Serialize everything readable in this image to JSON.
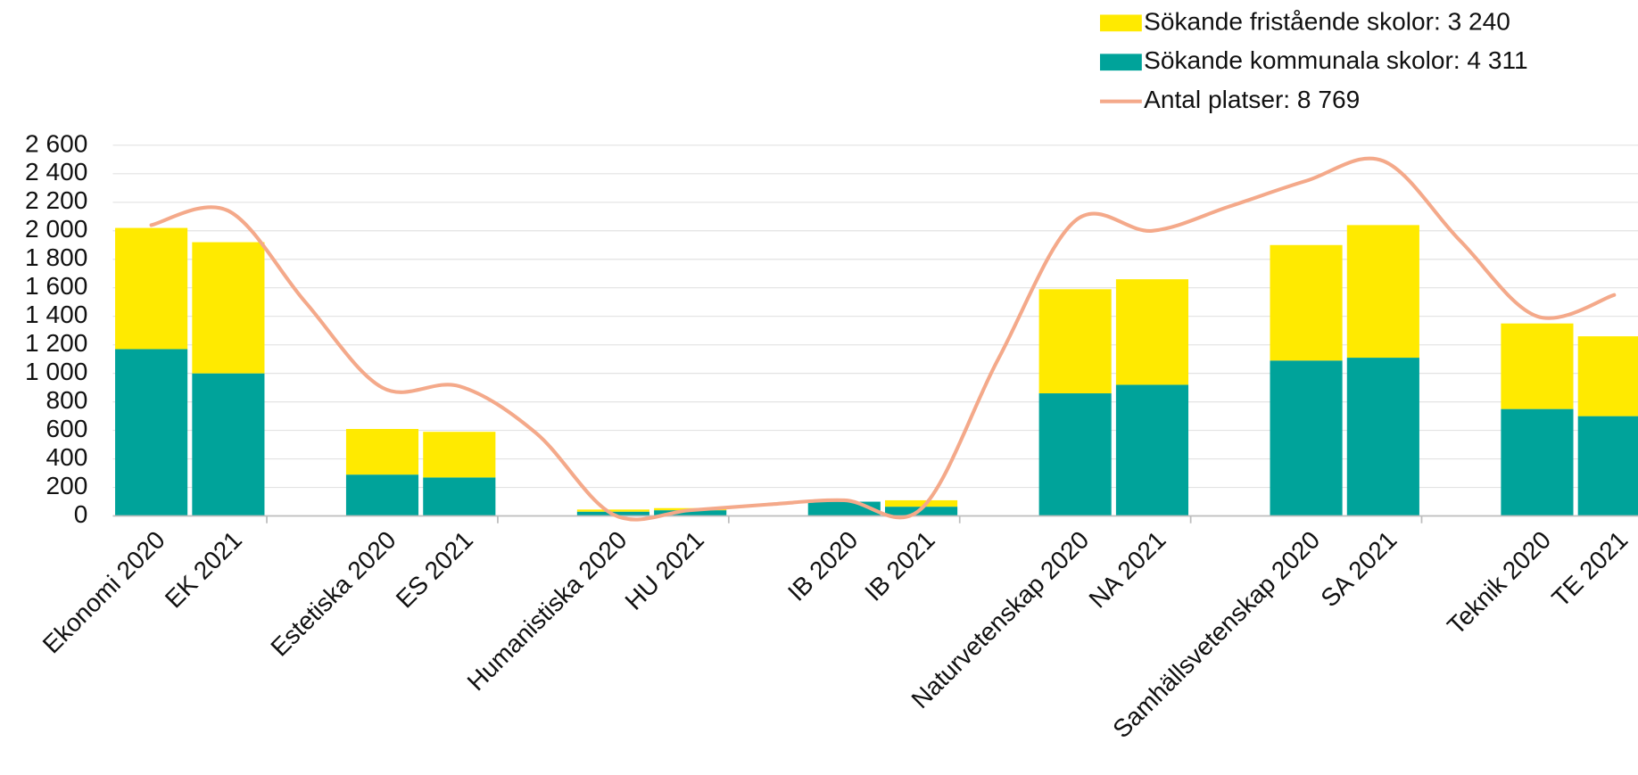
{
  "chart_data": {
    "type": "bar",
    "categories": [
      "Ekonomi 2020",
      "EK 2021",
      null,
      "Estetiska 2020",
      "ES 2021",
      null,
      "Humanistiska 2020",
      "HU 2021",
      null,
      "IB 2020",
      "IB 2021",
      null,
      "Naturvetenskap 2020",
      "NA 2021",
      null,
      "Samhällsvetenskap 2020",
      "SA 2021",
      null,
      "Teknik 2020",
      "TE 2021"
    ],
    "series": [
      {
        "name": "Sökande fristående skolor: 3 240",
        "type": "bar",
        "color": "#ffea00",
        "values": [
          850,
          920,
          null,
          320,
          320,
          null,
          15,
          15,
          null,
          0,
          45,
          null,
          730,
          740,
          null,
          810,
          930,
          null,
          600,
          560
        ]
      },
      {
        "name": "Sökande kommunala skolor: 4 311",
        "type": "bar",
        "color": "#00a39a",
        "values": [
          1170,
          1000,
          null,
          290,
          270,
          null,
          30,
          40,
          null,
          100,
          65,
          null,
          860,
          920,
          null,
          1090,
          1110,
          null,
          750,
          700
        ]
      },
      {
        "name": "Antal platser: 8 769",
        "type": "line",
        "color": "#f4a98a",
        "values": [
          2040,
          2140,
          1500,
          900,
          910,
          580,
          10,
          40,
          80,
          110,
          50,
          1100,
          2070,
          2000,
          2170,
          2350,
          2490,
          1930,
          1400,
          1550
        ]
      }
    ],
    "stacked": true,
    "ylim": [
      0,
      2600
    ],
    "yticks": [
      0,
      200,
      400,
      600,
      800,
      {
        "value": 1000,
        "label": "1 000"
      },
      {
        "value": 1200,
        "label": "1 200"
      },
      {
        "value": 1400,
        "label": "1 400"
      },
      {
        "value": 1600,
        "label": "1 600"
      },
      {
        "value": 1800,
        "label": "1 800"
      },
      {
        "value": 2000,
        "label": "2 000"
      },
      {
        "value": 2200,
        "label": "2 200"
      },
      {
        "value": 2400,
        "label": "2 400"
      },
      {
        "value": 2600,
        "label": "2 600"
      }
    ],
    "grid": true,
    "legend": "top-right"
  }
}
